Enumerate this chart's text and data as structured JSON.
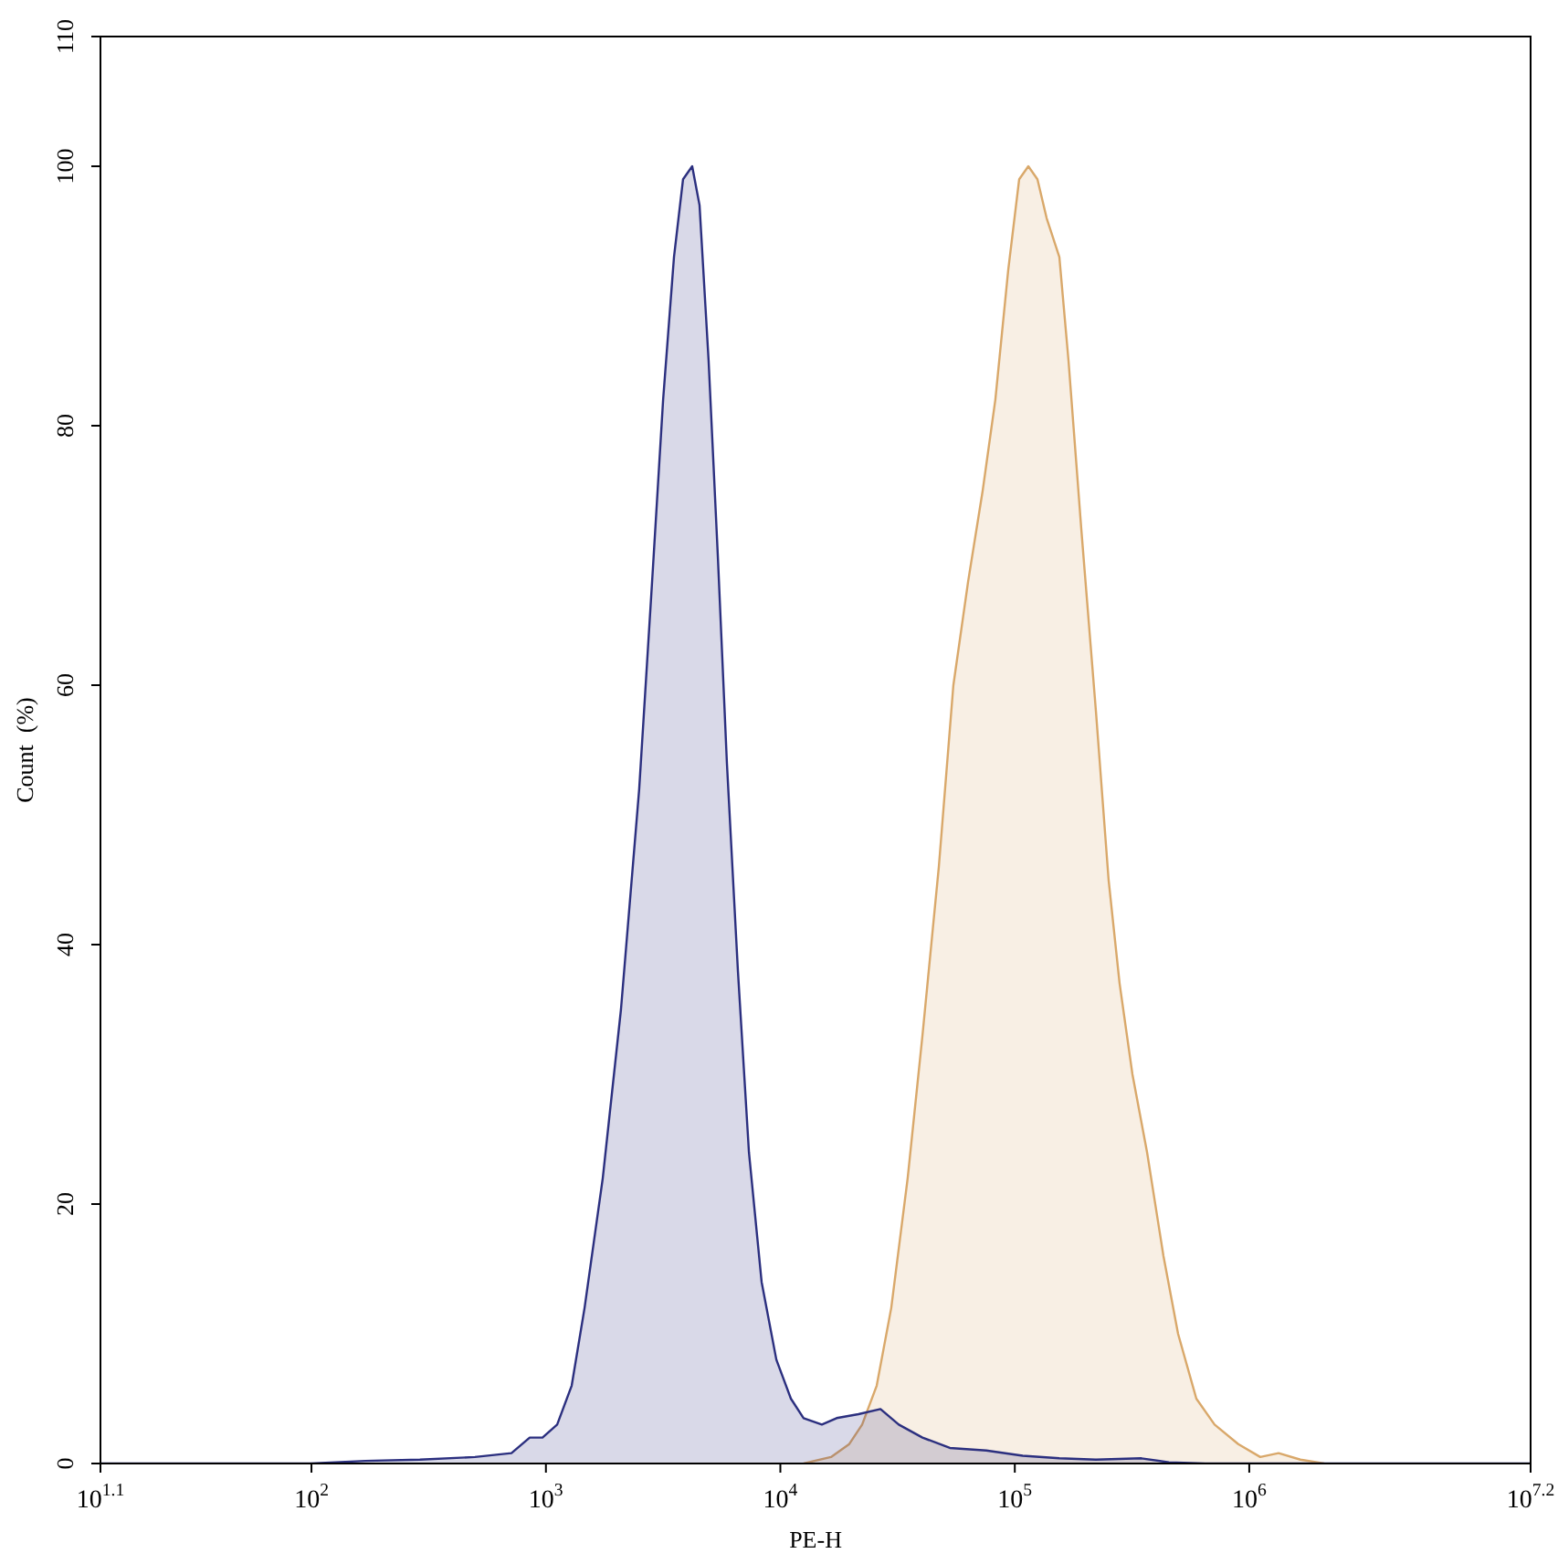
{
  "chart_data": {
    "type": "area",
    "xlabel": "PE-H",
    "ylabel": "Count  (%)",
    "log": "x",
    "grid": false,
    "legend": false,
    "marker": "none",
    "line_style": "solid",
    "xlim": [
      12.59,
      15850000
    ],
    "ylim": [
      0,
      110
    ],
    "xticks": [
      {
        "value": 12.59,
        "label": "10$^{1.1}$"
      },
      {
        "value": 100,
        "label": "10$^{2}$"
      },
      {
        "value": 1000,
        "label": "10$^{3}$"
      },
      {
        "value": 10000,
        "label": "10$^{4}$"
      },
      {
        "value": 100000,
        "label": "10$^{5}$"
      },
      {
        "value": 1000000,
        "label": "10$^{6}$"
      },
      {
        "value": 15850000,
        "label": "10$^{7.2}$"
      }
    ],
    "yticks": [
      0,
      20,
      40,
      60,
      80,
      100,
      110
    ],
    "series": [
      {
        "color": "#2b2f7f",
        "x": [
          12.59,
          99,
          170,
          290,
          498,
          713,
          853,
          967,
          1117,
          1288,
          1462,
          1748,
          2090,
          2500,
          2838,
          3162,
          3518,
          3846,
          4207,
          4522,
          4943,
          5410,
          5916,
          6590,
          7345,
          8318,
          9616,
          11090,
          12560,
          15030,
          17380,
          21530,
          26730,
          31990,
          40380,
          52840,
          75560,
          108100,
          154900,
          221800,
          346900,
          454100,
          650200,
          15850000
        ],
        "values": [
          0,
          0,
          0.2,
          0.3,
          0.5,
          0.8,
          2,
          2,
          3,
          6,
          12,
          22,
          35,
          52,
          68,
          82,
          93,
          99,
          100,
          97,
          85,
          70,
          54,
          38,
          24,
          14,
          8,
          5,
          3.5,
          3,
          3.5,
          3.8,
          4.2,
          3,
          2,
          1.2,
          1,
          0.6,
          0.4,
          0.3,
          0.4,
          0.1,
          0,
          0
        ]
      },
      {
        "color": "#d9a86a",
        "x": [
          12560,
          16440,
          19680,
          22330,
          25760,
          29720,
          34920,
          40380,
          47420,
          54700,
          63240,
          72950,
          82600,
          93740,
          104400,
          114200,
          124900,
          136700,
          154900,
          169500,
          192200,
          221800,
          251200,
          279900,
          317500,
          366500,
          430500,
          497000,
          594700,
          711300,
          897500,
          1114000,
          1334000,
          1652000,
          2088000
        ],
        "values": [
          0,
          0.5,
          1.5,
          3,
          6,
          12,
          22,
          33,
          46,
          60,
          68,
          75,
          82,
          92,
          99,
          100,
          99,
          96,
          93,
          85,
          72,
          58,
          45,
          37,
          30,
          24,
          16,
          10,
          5,
          3,
          1.5,
          0.5,
          0.8,
          0.3,
          0
        ]
      }
    ]
  }
}
